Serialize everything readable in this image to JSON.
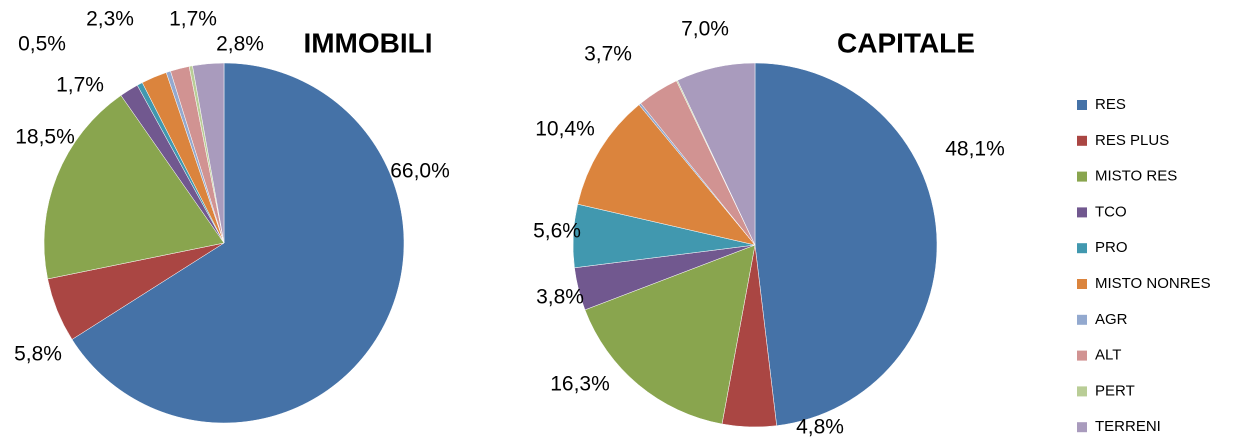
{
  "legend": {
    "labels": [
      "RES",
      "RES PLUS",
      "MISTO RES",
      "TCO",
      "PRO",
      "MISTO NONRES",
      "AGR",
      "ALT",
      "PERT",
      "TERRENI"
    ],
    "colors": [
      "#4572a7",
      "#aa4643",
      "#89a54e",
      "#71588f",
      "#4198af",
      "#db843d",
      "#93a9cf",
      "#d19392",
      "#b9cd96",
      "#a99bbd"
    ]
  },
  "chart_data": [
    {
      "type": "pie",
      "title": "IMMOBILI",
      "values": [
        66.0,
        5.8,
        18.5,
        1.7,
        0.5,
        2.3,
        0.4,
        1.7,
        0.3,
        2.8
      ],
      "value_labels": [
        "66,0%",
        "5,8%",
        "18,5%",
        "1,7%",
        "0,5%",
        "2,3%",
        null,
        "1,7%",
        null,
        "2,8%"
      ]
    },
    {
      "type": "pie",
      "title": "CAPITALE",
      "values": [
        48.1,
        4.8,
        16.3,
        3.8,
        5.6,
        10.4,
        0.2,
        3.7,
        0.1,
        7.0
      ],
      "value_labels": [
        "48,1%",
        "4,8%",
        "16,3%",
        "3,8%",
        "5,6%",
        "10,4%",
        null,
        "3,7%",
        null,
        "7,0%"
      ]
    }
  ]
}
